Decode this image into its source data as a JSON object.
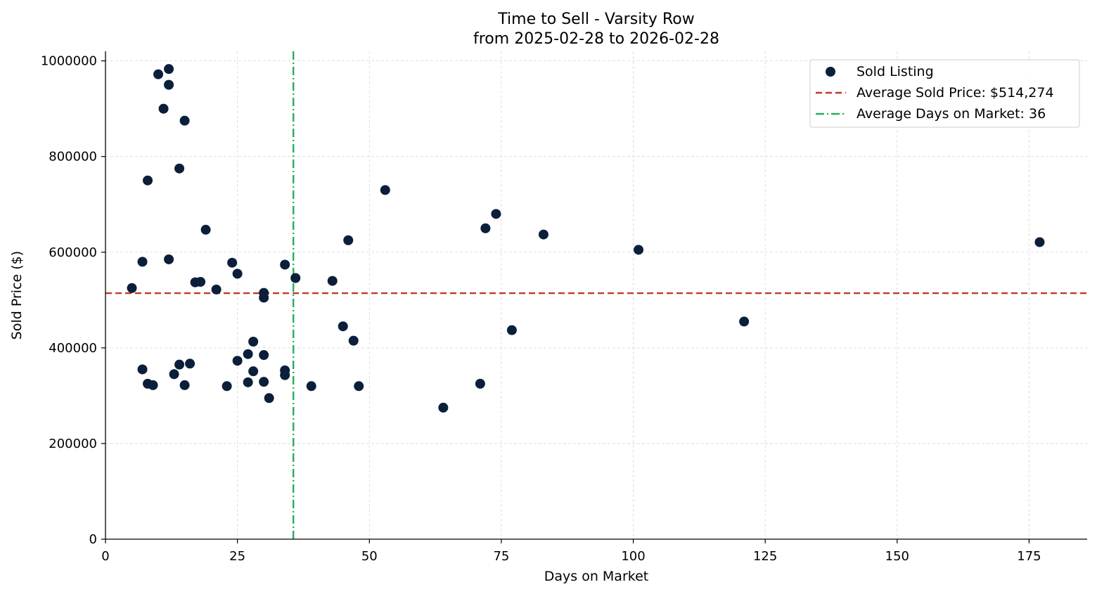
{
  "chart_data": {
    "type": "scatter",
    "title": "Time to Sell - Varsity Row",
    "subtitle": "from 2025-02-28 to 2026-02-28",
    "xlabel": "Days on Market",
    "ylabel": "Sold Price ($)",
    "xlim": [
      0,
      186
    ],
    "ylim": [
      0,
      1020000
    ],
    "x_ticks": [
      0,
      25,
      50,
      75,
      100,
      125,
      150,
      175
    ],
    "y_ticks": [
      0,
      200000,
      400000,
      600000,
      800000,
      1000000
    ],
    "grid": true,
    "legend_position": "top-right",
    "colors": {
      "points": "#0b1f3a",
      "avg_price_line": "#c0392b",
      "avg_days_line": "#27ae60"
    },
    "series": [
      {
        "name": "Sold Listing",
        "points": [
          [
            5,
            525000
          ],
          [
            7,
            580000
          ],
          [
            7,
            355000
          ],
          [
            8,
            750000
          ],
          [
            8,
            325000
          ],
          [
            9,
            322000
          ],
          [
            10,
            972000
          ],
          [
            11,
            900000
          ],
          [
            12,
            983000
          ],
          [
            12,
            950000
          ],
          [
            12,
            585000
          ],
          [
            13,
            345000
          ],
          [
            14,
            775000
          ],
          [
            14,
            365000
          ],
          [
            15,
            875000
          ],
          [
            15,
            322000
          ],
          [
            16,
            367000
          ],
          [
            17,
            537000
          ],
          [
            18,
            538000
          ],
          [
            19,
            647000
          ],
          [
            21,
            522000
          ],
          [
            23,
            320000
          ],
          [
            24,
            578000
          ],
          [
            25,
            555000
          ],
          [
            25,
            373000
          ],
          [
            27,
            387000
          ],
          [
            27,
            328000
          ],
          [
            28,
            413000
          ],
          [
            28,
            351000
          ],
          [
            30,
            515000
          ],
          [
            30,
            505000
          ],
          [
            30,
            385000
          ],
          [
            30,
            329000
          ],
          [
            31,
            295000
          ],
          [
            34,
            574000
          ],
          [
            34,
            353000
          ],
          [
            34,
            343000
          ],
          [
            36,
            546000
          ],
          [
            39,
            320000
          ],
          [
            43,
            540000
          ],
          [
            45,
            445000
          ],
          [
            46,
            625000
          ],
          [
            47,
            415000
          ],
          [
            48,
            320000
          ],
          [
            53,
            730000
          ],
          [
            64,
            275000
          ],
          [
            71,
            325000
          ],
          [
            72,
            650000
          ],
          [
            74,
            680000
          ],
          [
            77,
            437000
          ],
          [
            83,
            637000
          ],
          [
            101,
            605000
          ],
          [
            121,
            455000
          ],
          [
            177,
            621000
          ]
        ]
      }
    ],
    "average_sold_price": 514274,
    "average_days_on_market": 35.6,
    "legend": {
      "scatter_label": "Sold Listing",
      "price_label": "Average Sold Price: $514,274",
      "days_label": "Average Days on Market: 36"
    }
  }
}
